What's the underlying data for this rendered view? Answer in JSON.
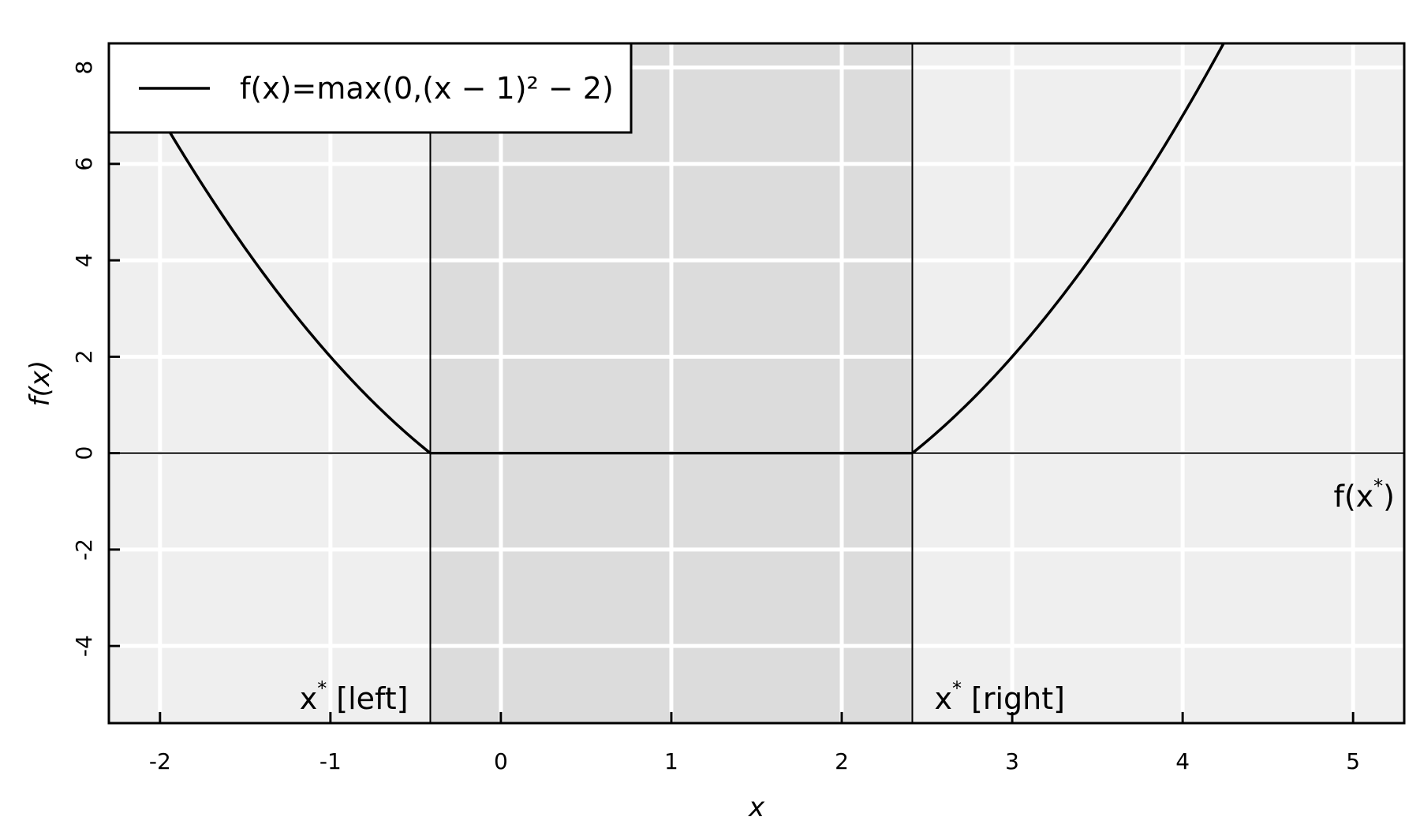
{
  "chart_data": {
    "type": "line",
    "title": "",
    "xlabel": "x",
    "ylabel": "f(x)",
    "xlim": [
      -2.3,
      5.3
    ],
    "ylim": [
      -5.6,
      8.5
    ],
    "x_ticks": [
      "-2",
      "-1",
      "0",
      "1",
      "2",
      "3",
      "4",
      "5"
    ],
    "y_ticks": [
      "-4",
      "-2",
      "0",
      "2",
      "4",
      "6",
      "8"
    ],
    "grid": true,
    "legend": {
      "position": "top-left",
      "entries": [
        "f(x)=max(0,(x − 1)² − 2)"
      ]
    },
    "series": [
      {
        "name": "f(x)=max(0,(x − 1)² − 2)",
        "x": [
          -2.3,
          -2.0,
          -1.5,
          -1.0,
          -0.5,
          -0.414,
          0.0,
          1.0,
          2.0,
          2.414,
          3.0,
          3.5,
          4.0,
          4.25,
          5.3
        ],
        "y": [
          8.89,
          7.0,
          4.25,
          2.0,
          0.25,
          0.0,
          0.0,
          0.0,
          0.0,
          0.0,
          2.0,
          4.25,
          7.0,
          8.56,
          16.49
        ]
      }
    ],
    "shaded_region": {
      "x": [
        -0.414,
        2.414
      ]
    },
    "vertical_lines": [
      -0.414,
      2.414
    ],
    "horizontal_line": 0,
    "annotations": [
      {
        "text": "x",
        "sup": "*",
        "suffix": " [left]"
      },
      {
        "text": "x",
        "sup": "*",
        "suffix": " [right]"
      },
      {
        "text": "f(x",
        "sup": "*",
        "suffix": ")"
      }
    ],
    "colors": {
      "panel_background": "#efefef",
      "shade": "#dcdcdc",
      "grid": "#ffffff",
      "line": "#000000"
    }
  }
}
